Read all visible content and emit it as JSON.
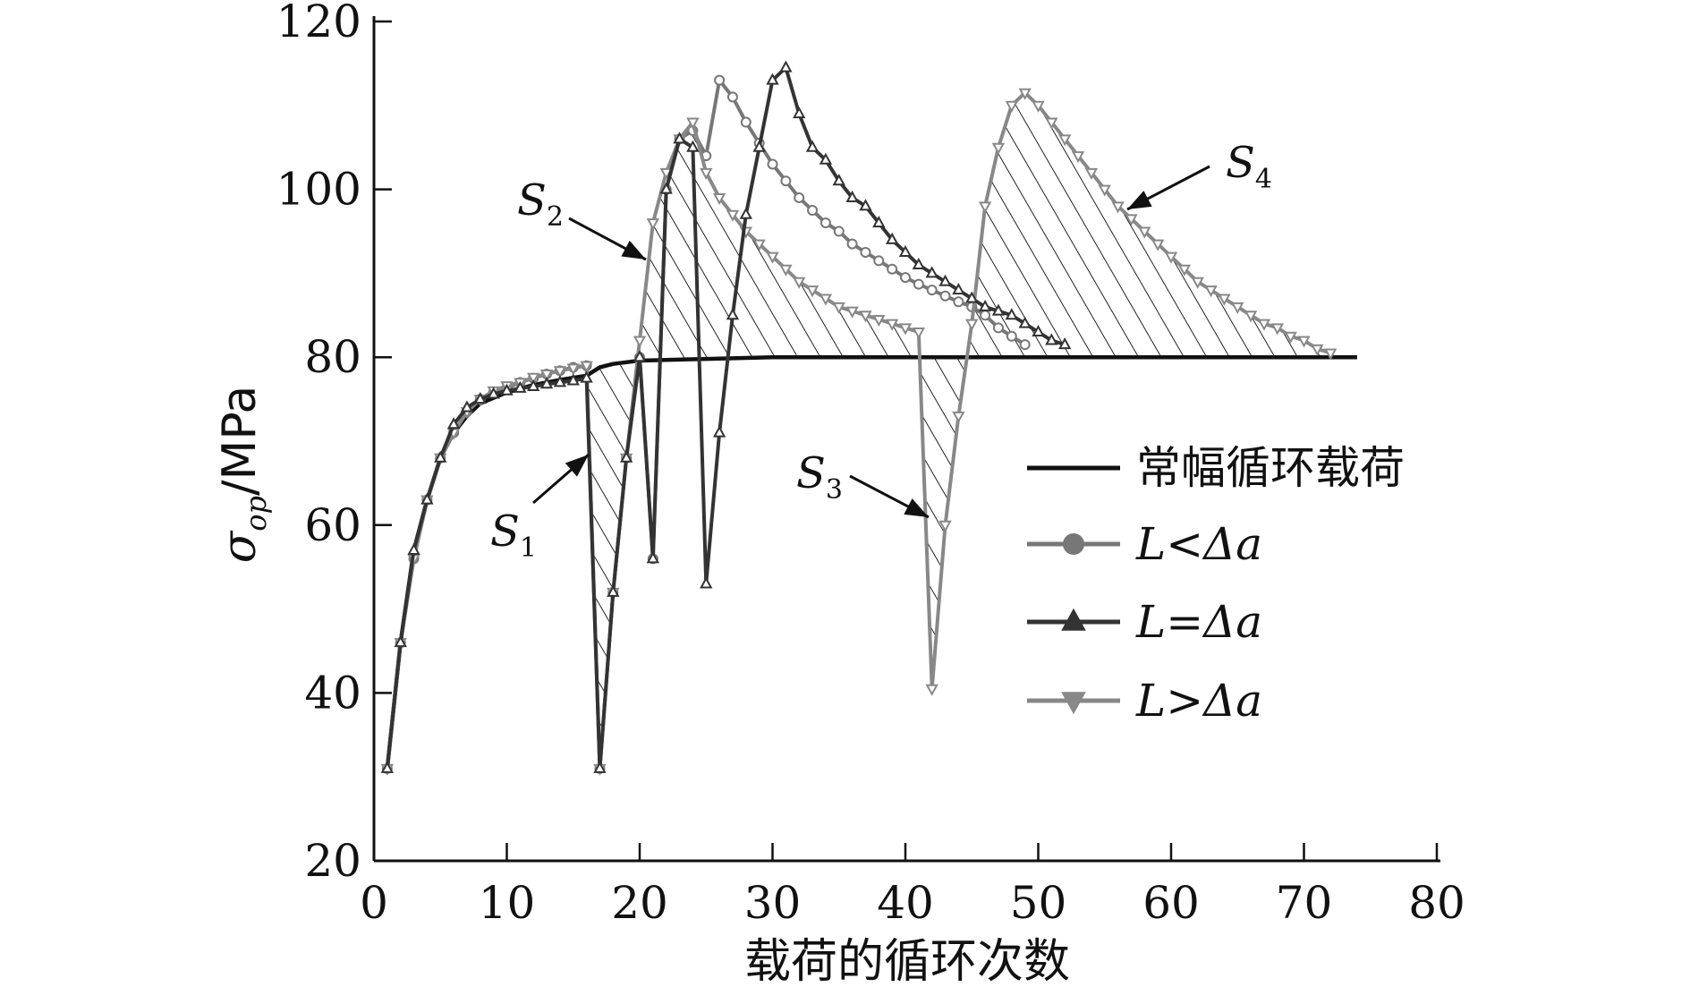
{
  "chart_data": {
    "type": "line",
    "xlabel": "载荷的循环次数",
    "ylabel": {
      "symbol": "σ",
      "subscript": "op",
      "unit": "/MPa"
    },
    "xlim": [
      0,
      80
    ],
    "ylim": [
      20,
      120
    ],
    "x_ticks": [
      0,
      10,
      20,
      30,
      40,
      50,
      60,
      70,
      80
    ],
    "y_ticks": [
      20,
      40,
      60,
      80,
      100,
      120
    ],
    "grid": false,
    "legend_position": "center-right",
    "series": [
      {
        "name": "常幅循环载荷",
        "marker": "none",
        "color": "#111111",
        "points": [
          [
            1,
            31
          ],
          [
            2,
            46
          ],
          [
            3,
            57
          ],
          [
            4,
            63
          ],
          [
            5,
            68
          ],
          [
            6,
            71
          ],
          [
            7,
            73
          ],
          [
            8,
            74.5
          ],
          [
            10,
            75.8
          ],
          [
            12,
            76.7
          ],
          [
            14,
            77.3
          ],
          [
            16,
            77.8
          ],
          [
            17,
            78.8
          ],
          [
            18,
            79.2
          ],
          [
            20,
            79.6
          ],
          [
            25,
            79.8
          ],
          [
            30,
            80
          ],
          [
            35,
            80
          ],
          [
            40,
            80
          ],
          [
            45,
            80
          ],
          [
            50,
            80
          ],
          [
            55,
            80
          ],
          [
            60,
            80
          ],
          [
            65,
            80
          ],
          [
            70,
            80
          ],
          [
            74,
            80
          ]
        ]
      },
      {
        "name": "L<Δa",
        "marker": "circle",
        "color": "#777777",
        "points": [
          [
            1,
            31
          ],
          [
            2,
            46
          ],
          [
            3,
            56
          ],
          [
            4,
            63
          ],
          [
            5,
            68
          ],
          [
            6,
            71
          ],
          [
            7,
            73.5
          ],
          [
            8,
            75
          ],
          [
            9,
            75.8
          ],
          [
            10,
            76.3
          ],
          [
            11,
            77
          ],
          [
            12,
            77.5
          ],
          [
            13,
            78
          ],
          [
            14,
            78.4
          ],
          [
            15,
            78.8
          ],
          [
            16,
            79
          ],
          [
            17,
            31
          ],
          [
            18,
            52
          ],
          [
            19,
            68
          ],
          [
            20,
            80
          ],
          [
            21,
            56
          ],
          [
            22,
            100
          ],
          [
            23,
            106
          ],
          [
            24,
            107
          ],
          [
            25,
            104
          ],
          [
            26,
            113
          ],
          [
            27,
            111
          ],
          [
            28,
            108
          ],
          [
            29,
            105.5
          ],
          [
            30,
            103
          ],
          [
            31,
            101
          ],
          [
            32,
            99
          ],
          [
            33,
            97.5
          ],
          [
            34,
            96
          ],
          [
            35,
            95
          ],
          [
            36,
            93.5
          ],
          [
            37,
            92.5
          ],
          [
            38,
            91.5
          ],
          [
            39,
            90.5
          ],
          [
            40,
            89.5
          ],
          [
            41,
            88.7
          ],
          [
            42,
            88
          ],
          [
            43,
            87.3
          ],
          [
            44,
            86.6
          ],
          [
            45,
            86
          ],
          [
            46,
            85
          ],
          [
            47,
            83.5
          ],
          [
            48,
            82.5
          ],
          [
            49,
            81.5
          ]
        ]
      },
      {
        "name": "L=Δa",
        "marker": "triangle-up",
        "color": "#333333",
        "points": [
          [
            1,
            31
          ],
          [
            2,
            46
          ],
          [
            3,
            57
          ],
          [
            4,
            63
          ],
          [
            5,
            68
          ],
          [
            6,
            72
          ],
          [
            7,
            74
          ],
          [
            8,
            75
          ],
          [
            9,
            75.6
          ],
          [
            10,
            76
          ],
          [
            11,
            76.3
          ],
          [
            12,
            76.5
          ],
          [
            13,
            76.8
          ],
          [
            14,
            77
          ],
          [
            15,
            77.2
          ],
          [
            16,
            77.5
          ],
          [
            17,
            31
          ],
          [
            18,
            52
          ],
          [
            19,
            68
          ],
          [
            20,
            80
          ],
          [
            21,
            56
          ],
          [
            22,
            100
          ],
          [
            23,
            106
          ],
          [
            24,
            105
          ],
          [
            25,
            53
          ],
          [
            26,
            71
          ],
          [
            27,
            85
          ],
          [
            28,
            97
          ],
          [
            29,
            105
          ],
          [
            30,
            113
          ],
          [
            31,
            114.5
          ],
          [
            32,
            109
          ],
          [
            33,
            105
          ],
          [
            34,
            103.5
          ],
          [
            35,
            101
          ],
          [
            36,
            99
          ],
          [
            37,
            98
          ],
          [
            38,
            96
          ],
          [
            39,
            94
          ],
          [
            40,
            92.5
          ],
          [
            41,
            91
          ],
          [
            42,
            90
          ],
          [
            43,
            89
          ],
          [
            44,
            88
          ],
          [
            45,
            87
          ],
          [
            46,
            86
          ],
          [
            47,
            85.5
          ],
          [
            48,
            85
          ],
          [
            49,
            84
          ],
          [
            50,
            83
          ],
          [
            51,
            82
          ],
          [
            52,
            81.5
          ]
        ]
      },
      {
        "name": "L>Δa",
        "marker": "triangle-down",
        "color": "#888888",
        "points": [
          [
            1,
            31
          ],
          [
            2,
            46
          ],
          [
            3,
            56
          ],
          [
            4,
            63
          ],
          [
            5,
            68
          ],
          [
            6,
            71
          ],
          [
            7,
            73.5
          ],
          [
            8,
            75
          ],
          [
            9,
            76
          ],
          [
            10,
            76.6
          ],
          [
            11,
            77
          ],
          [
            12,
            77.6
          ],
          [
            13,
            78
          ],
          [
            14,
            78.4
          ],
          [
            15,
            78.7
          ],
          [
            16,
            79
          ],
          [
            17,
            31
          ],
          [
            18,
            52
          ],
          [
            19,
            68
          ],
          [
            20,
            82
          ],
          [
            21,
            96
          ],
          [
            22,
            102
          ],
          [
            23,
            106
          ],
          [
            24,
            108
          ],
          [
            25,
            102
          ],
          [
            26,
            99
          ],
          [
            27,
            97
          ],
          [
            28,
            95
          ],
          [
            29,
            93.5
          ],
          [
            30,
            92
          ],
          [
            31,
            90.5
          ],
          [
            32,
            89
          ],
          [
            33,
            88
          ],
          [
            34,
            87
          ],
          [
            35,
            86
          ],
          [
            36,
            85.5
          ],
          [
            37,
            85
          ],
          [
            38,
            84.5
          ],
          [
            39,
            84
          ],
          [
            40,
            83.5
          ],
          [
            41,
            83
          ],
          [
            42,
            40.5
          ],
          [
            43,
            60
          ],
          [
            44,
            73
          ],
          [
            45,
            84
          ],
          [
            46,
            98
          ],
          [
            47,
            105
          ],
          [
            48,
            110
          ],
          [
            49,
            111.5
          ],
          [
            50,
            110
          ],
          [
            51,
            108
          ],
          [
            52,
            106
          ],
          [
            53,
            104
          ],
          [
            54,
            102
          ],
          [
            55,
            100
          ],
          [
            56,
            98
          ],
          [
            57,
            96.5
          ],
          [
            58,
            95
          ],
          [
            59,
            93.5
          ],
          [
            60,
            92
          ],
          [
            61,
            90.5
          ],
          [
            62,
            89
          ],
          [
            63,
            88
          ],
          [
            64,
            87
          ],
          [
            65,
            86
          ],
          [
            66,
            85
          ],
          [
            67,
            84
          ],
          [
            68,
            83.5
          ],
          [
            69,
            82.5
          ],
          [
            70,
            82
          ],
          [
            71,
            81
          ],
          [
            72,
            80.5
          ]
        ]
      }
    ],
    "annotations": [
      {
        "name": "S1",
        "base": "S",
        "sub": "1"
      },
      {
        "name": "S2",
        "base": "S",
        "sub": "2"
      },
      {
        "name": "S3",
        "base": "S",
        "sub": "3"
      },
      {
        "name": "S4",
        "base": "S",
        "sub": "4"
      }
    ]
  }
}
